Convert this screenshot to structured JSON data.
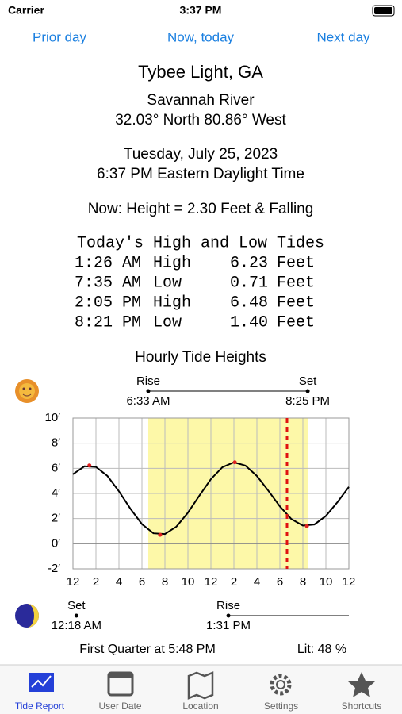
{
  "status": {
    "carrier": "Carrier",
    "time": "3:37 PM"
  },
  "nav": {
    "prior": "Prior day",
    "now": "Now, today",
    "next": "Next day"
  },
  "header": {
    "station": "Tybee Light, GA",
    "river": "Savannah River",
    "coords": "32.03° North  80.86° West",
    "date": "Tuesday, July 25, 2023",
    "time": "6:37 PM Eastern Daylight Time",
    "now_height": "Now: Height =  2.30  Feet  & Falling"
  },
  "tides": {
    "title": "Today's High and Low Tides",
    "rows": [
      [
        "1:26 AM",
        "High",
        "6.23",
        "Feet"
      ],
      [
        "7:35 AM",
        "Low",
        "0.71",
        "Feet"
      ],
      [
        "2:05 PM",
        "High",
        "6.48",
        "Feet"
      ],
      [
        "8:21 PM",
        "Low",
        "1.40",
        "Feet"
      ]
    ]
  },
  "chart_data": {
    "type": "line",
    "title": "Hourly Tide Heights",
    "x": [
      0,
      1,
      2,
      3,
      4,
      5,
      6,
      7,
      8,
      9,
      10,
      11,
      12,
      13,
      14,
      15,
      16,
      17,
      18,
      19,
      20,
      21,
      22,
      23,
      24
    ],
    "series": [
      {
        "color": "#000000",
        "values": [
          5.53,
          6.16,
          6.11,
          5.39,
          4.17,
          2.78,
          1.56,
          0.83,
          0.77,
          1.36,
          2.47,
          3.83,
          5.14,
          6.09,
          6.48,
          6.22,
          5.39,
          4.21,
          2.97,
          1.96,
          1.44,
          1.53,
          2.21,
          3.3,
          4.52
        ]
      }
    ],
    "extremes": {
      "color": "#e02020",
      "x": [
        1.43,
        7.58,
        14.08,
        20.35
      ],
      "values": [
        6.23,
        0.71,
        6.48,
        1.4
      ]
    },
    "daylight": [
      6.55,
      20.42
    ],
    "daylight_color": "#fdf8a8",
    "now_x": 18.62,
    "now_color": "#e01010",
    "xlim": [
      0,
      24
    ],
    "ylim": [
      -2,
      10
    ],
    "grid": true,
    "xticks": [
      {
        "value": 0,
        "label": "12"
      },
      2,
      4,
      6,
      8,
      10,
      {
        "value": 12,
        "label": "12"
      },
      {
        "value": 14,
        "label": "2"
      },
      {
        "value": 16,
        "label": "4"
      },
      {
        "value": 18,
        "label": "6"
      },
      {
        "value": 20,
        "label": "8"
      },
      {
        "value": 22,
        "label": "10"
      },
      {
        "value": 24,
        "label": "12"
      }
    ],
    "yticks": [
      {
        "value": -2,
        "label": "-2′"
      },
      {
        "value": 0,
        "label": "0′"
      },
      {
        "value": 2,
        "label": "2′"
      },
      {
        "value": 4,
        "label": "4′"
      },
      {
        "value": 6,
        "label": "6′"
      },
      {
        "value": 8,
        "label": "8′"
      },
      {
        "value": 10,
        "label": "10′"
      }
    ],
    "sun": {
      "rise": "Rise",
      "rise_time": "6:33 AM",
      "set": "Set",
      "set_time": "8:25 PM"
    },
    "moon": {
      "set": "Set",
      "set_time": "12:18 AM",
      "set_x": 0.3,
      "rise": "Rise",
      "rise_time": "1:31 PM",
      "rise_x": 13.52
    }
  },
  "footer": {
    "phase": "First Quarter at  5:48 PM",
    "lit": "Lit: 48 %"
  },
  "tabs": [
    "Tide Report",
    "User Date",
    "Location",
    "Settings",
    "Shortcuts"
  ]
}
